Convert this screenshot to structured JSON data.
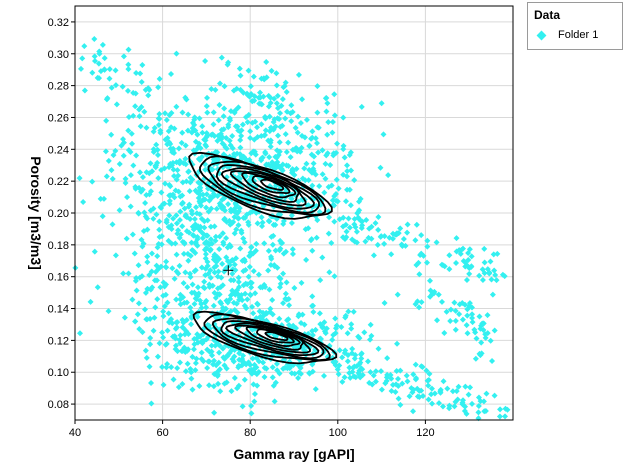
{
  "colors": {
    "points": "#33f0f0",
    "contours": "#000000",
    "grid": "#d9d9d9",
    "axis": "#000000"
  },
  "legend": {
    "title": "Data",
    "entries": [
      {
        "label": "Folder 1",
        "marker": "diamond",
        "color": "#33f0f0"
      }
    ]
  },
  "chart_data": {
    "type": "scatter",
    "title": "",
    "xlabel": "Gamma ray [gAPI]",
    "ylabel": "Porosity [m3/m3]",
    "xlim": [
      40,
      140
    ],
    "ylim": [
      0.07,
      0.33
    ],
    "x_ticks": [
      40,
      60,
      80,
      100,
      120
    ],
    "x_tick_labels": [
      "40",
      "60",
      "80",
      "100",
      "120"
    ],
    "y_ticks": [
      0.08,
      0.1,
      0.12,
      0.14,
      0.16,
      0.18,
      0.2,
      0.22,
      0.24,
      0.26,
      0.28,
      0.3,
      0.32
    ],
    "y_tick_labels": [
      "0.08",
      "0.10",
      "0.12",
      "0.14",
      "0.16",
      "0.18",
      "0.20",
      "0.22",
      "0.24",
      "0.26",
      "0.28",
      "0.30",
      "0.32"
    ],
    "grid": true,
    "legend_position": "outside-top-right",
    "marker": {
      "x": 75,
      "y": 0.164,
      "symbol": "+"
    },
    "series": [
      {
        "name": "Folder 1",
        "marker": "diamond",
        "color": "#33f0f0",
        "clusters": [
          {
            "x": 75,
            "y": 0.23,
            "sx": 11,
            "sy": 0.025,
            "n": 380
          },
          {
            "x": 76,
            "y": 0.125,
            "sx": 12,
            "sy": 0.018,
            "n": 340
          },
          {
            "x": 73,
            "y": 0.175,
            "sx": 9,
            "sy": 0.022,
            "n": 280
          },
          {
            "x": 84,
            "y": 0.215,
            "sx": 10,
            "sy": 0.015,
            "n": 200
          },
          {
            "x": 90,
            "y": 0.118,
            "sx": 9,
            "sy": 0.012,
            "n": 180
          },
          {
            "x": 83,
            "y": 0.268,
            "sx": 5,
            "sy": 0.013,
            "n": 70
          },
          {
            "x": 98,
            "y": 0.24,
            "sx": 5,
            "sy": 0.02,
            "n": 60
          },
          {
            "x": 56,
            "y": 0.205,
            "sx": 7,
            "sy": 0.03,
            "n": 90
          }
        ],
        "trends": [
          {
            "x": [
              42,
              68
            ],
            "y": [
              0.3,
              0.24
            ],
            "jitter_x": 4,
            "jitter_y": 0.012,
            "n": 80
          },
          {
            "x": [
              100,
              137
            ],
            "y": [
              0.196,
              0.164
            ],
            "jitter_x": 2,
            "jitter_y": 0.006,
            "n": 110
          },
          {
            "x": [
              100,
              138
            ],
            "y": [
              0.105,
              0.075
            ],
            "jitter_x": 2,
            "jitter_y": 0.006,
            "n": 130
          },
          {
            "x": [
              119,
              136
            ],
            "y": [
              0.15,
              0.12
            ],
            "jitter_x": 2,
            "jitter_y": 0.008,
            "n": 60
          },
          {
            "x": [
              60,
              80
            ],
            "y": [
              0.14,
              0.09
            ],
            "jitter_x": 3,
            "jitter_y": 0.01,
            "n": 60
          }
        ]
      }
    ],
    "contours": [
      {
        "cx": 82,
        "cy": 0.216,
        "a": 16,
        "b": 0.014,
        "rot": -0.09,
        "levels": 9
      },
      {
        "cx": 83,
        "cy": 0.121,
        "a": 16,
        "b": 0.011,
        "rot": -0.07,
        "levels": 9
      }
    ]
  }
}
